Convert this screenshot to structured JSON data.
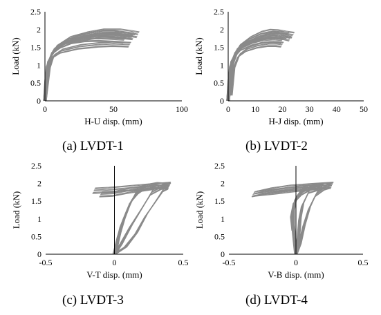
{
  "chart_data": [
    {
      "type": "line",
      "caption": "(a) LVDT-1",
      "xlabel": "H-U disp. (mm)",
      "ylabel": "Load (kN)",
      "xlim": [
        0,
        100
      ],
      "ylim": [
        0,
        2.5
      ],
      "xticks": [
        "0",
        "50",
        "100"
      ],
      "yticks": [
        "0",
        "0.5",
        "1",
        "1.5",
        "2",
        "2.5"
      ],
      "grid": false,
      "series": [
        {
          "values": [
            [
              0,
              0
            ],
            [
              1,
              0.35
            ],
            [
              2,
              0.85
            ],
            [
              4,
              1.2
            ],
            [
              7,
              1.4
            ],
            [
              12,
              1.55
            ],
            [
              20,
              1.68
            ],
            [
              30,
              1.78
            ],
            [
              40,
              1.84
            ],
            [
              50,
              1.85
            ],
            [
              60,
              1.82
            ],
            [
              65,
              1.8
            ]
          ]
        },
        {
          "values": [
            [
              0,
              0
            ],
            [
              2,
              0.9
            ],
            [
              5,
              1.3
            ],
            [
              10,
              1.52
            ],
            [
              20,
              1.68
            ],
            [
              30,
              1.74
            ],
            [
              40,
              1.75
            ],
            [
              50,
              1.73
            ],
            [
              58,
              1.71
            ]
          ]
        },
        {
          "values": [
            [
              0,
              0
            ],
            [
              3,
              0.9
            ],
            [
              6,
              1.25
            ],
            [
              12,
              1.4
            ],
            [
              25,
              1.52
            ],
            [
              40,
              1.58
            ],
            [
              50,
              1.6
            ],
            [
              57,
              1.59
            ],
            [
              62,
              1.58
            ]
          ]
        },
        {
          "values": [
            [
              0,
              0
            ],
            [
              1,
              0.6
            ],
            [
              3,
              1.15
            ],
            [
              8,
              1.5
            ],
            [
              18,
              1.74
            ],
            [
              30,
              1.86
            ],
            [
              42,
              1.94
            ],
            [
              54,
              1.94
            ],
            [
              62,
              1.9
            ],
            [
              68,
              1.86
            ]
          ]
        },
        {
          "values": [
            [
              0,
              0
            ],
            [
              2,
              1.0
            ],
            [
              6,
              1.42
            ],
            [
              15,
              1.66
            ],
            [
              28,
              1.82
            ],
            [
              40,
              1.9
            ],
            [
              50,
              1.9
            ],
            [
              58,
              1.86
            ],
            [
              64,
              1.83
            ]
          ]
        }
      ]
    },
    {
      "type": "line",
      "caption": "(b) LVDT-2",
      "xlabel": "H-J disp. (mm)",
      "ylabel": "Load (kN)",
      "xlim": [
        0,
        50
      ],
      "ylim": [
        0,
        2.5
      ],
      "xticks": [
        "0",
        "10",
        "20",
        "30",
        "40",
        "50"
      ],
      "yticks": [
        "0",
        "0.5",
        "1",
        "1.5",
        "2",
        "2.5"
      ],
      "grid": false,
      "series": [
        {
          "values": [
            [
              0,
              0
            ],
            [
              0.5,
              0.4
            ],
            [
              1,
              0.8
            ],
            [
              2,
              1.2
            ],
            [
              3.5,
              1.4
            ],
            [
              6,
              1.58
            ],
            [
              10,
              1.72
            ],
            [
              14,
              1.82
            ],
            [
              18,
              1.84
            ],
            [
              21,
              1.8
            ],
            [
              23,
              1.76
            ]
          ]
        },
        {
          "values": [
            [
              0,
              0
            ],
            [
              1,
              0.9
            ],
            [
              3,
              1.3
            ],
            [
              5,
              1.48
            ],
            [
              9,
              1.62
            ],
            [
              13,
              1.7
            ],
            [
              17,
              1.72
            ],
            [
              20,
              1.7
            ]
          ]
        },
        {
          "values": [
            [
              1,
              0.15
            ],
            [
              2,
              0.9
            ],
            [
              4,
              1.28
            ],
            [
              7,
              1.45
            ],
            [
              11,
              1.55
            ],
            [
              15,
              1.6
            ],
            [
              18,
              1.6
            ],
            [
              20,
              1.58
            ]
          ]
        },
        {
          "values": [
            [
              0,
              0
            ],
            [
              0.5,
              0.6
            ],
            [
              1.5,
              1.15
            ],
            [
              4,
              1.52
            ],
            [
              8,
              1.74
            ],
            [
              12,
              1.88
            ],
            [
              15,
              1.93
            ],
            [
              18,
              1.92
            ],
            [
              21,
              1.88
            ],
            [
              24,
              1.85
            ]
          ]
        },
        {
          "values": [
            [
              0,
              0
            ],
            [
              1,
              1.0
            ],
            [
              3,
              1.42
            ],
            [
              7,
              1.66
            ],
            [
              12,
              1.82
            ],
            [
              16,
              1.88
            ],
            [
              20,
              1.86
            ],
            [
              22,
              1.83
            ]
          ]
        }
      ]
    },
    {
      "type": "line",
      "caption": "(c) LVDT-3",
      "xlabel": "V-T disp. (mm)",
      "ylabel": "Load (kN)",
      "xlim": [
        -0.5,
        0.5
      ],
      "ylim": [
        0,
        2.5
      ],
      "xticks": [
        "-0.5",
        "0",
        "0.5"
      ],
      "yticks": [
        "0",
        "0.5",
        "1",
        "1.5",
        "2",
        "2.5"
      ],
      "grid": false,
      "series": [
        {
          "values": [
            [
              0,
              0
            ],
            [
              0.05,
              0.3
            ],
            [
              0.12,
              0.8
            ],
            [
              0.2,
              1.3
            ],
            [
              0.27,
              1.75
            ],
            [
              0.35,
              1.92
            ],
            [
              0.4,
              1.95
            ]
          ]
        },
        {
          "values": [
            [
              0,
              0
            ],
            [
              0.08,
              0.2
            ],
            [
              0.16,
              0.6
            ],
            [
              0.23,
              1.1
            ],
            [
              0.3,
              1.5
            ],
            [
              0.36,
              1.85
            ],
            [
              0.4,
              1.93
            ]
          ]
        },
        {
          "values": [
            [
              0,
              0
            ],
            [
              0.03,
              0.5
            ],
            [
              0.07,
              1.0
            ],
            [
              0.12,
              1.5
            ],
            [
              0.2,
              1.88
            ],
            [
              0.3,
              1.95
            ],
            [
              0.38,
              1.93
            ]
          ]
        },
        {
          "values": [
            [
              0,
              0
            ],
            [
              0.02,
              0.3
            ],
            [
              0.05,
              0.8
            ],
            [
              0.1,
              1.3
            ],
            [
              0.15,
              1.7
            ],
            [
              0.22,
              1.9
            ]
          ]
        },
        {
          "values": [
            [
              0.4,
              1.96
            ],
            [
              0.2,
              1.9
            ],
            [
              0.05,
              1.85
            ],
            [
              -0.05,
              1.82
            ],
            [
              -0.15,
              1.8
            ]
          ]
        },
        {
          "values": [
            [
              0.3,
              1.92
            ],
            [
              0.1,
              1.8
            ],
            [
              0,
              1.72
            ],
            [
              -0.1,
              1.7
            ]
          ]
        }
      ]
    },
    {
      "type": "line",
      "caption": "(d) LVDT-4",
      "xlabel": "V-B disp. (mm)",
      "ylabel": "Load (kN)",
      "xlim": [
        -0.5,
        0.5
      ],
      "ylim": [
        0,
        2.5
      ],
      "xticks": [
        "-0.5",
        "0",
        "0.5"
      ],
      "yticks": [
        "0",
        "0.5",
        "1",
        "1.5",
        "2",
        "2.5"
      ],
      "grid": false,
      "series": [
        {
          "values": [
            [
              0,
              0
            ],
            [
              -0.01,
              0.4
            ],
            [
              -0.02,
              0.8
            ],
            [
              -0.02,
              1.2
            ],
            [
              0,
              1.6
            ],
            [
              0.05,
              1.85
            ],
            [
              0.15,
              1.93
            ],
            [
              0.27,
              1.95
            ]
          ]
        },
        {
          "values": [
            [
              0,
              0
            ],
            [
              0.03,
              0.3
            ],
            [
              0.06,
              0.8
            ],
            [
              0.1,
              1.3
            ],
            [
              0.15,
              1.7
            ],
            [
              0.22,
              1.9
            ],
            [
              0.26,
              1.95
            ]
          ]
        },
        {
          "values": [
            [
              0,
              0
            ],
            [
              0.02,
              0.5
            ],
            [
              0.03,
              1.0
            ],
            [
              0.05,
              1.4
            ],
            [
              0.1,
              1.8
            ],
            [
              0.2,
              1.92
            ]
          ]
        },
        {
          "values": [
            [
              -0.02,
              0.7
            ],
            [
              -0.03,
              1.1
            ],
            [
              -0.01,
              1.5
            ],
            [
              0.05,
              1.75
            ],
            [
              0.12,
              1.9
            ]
          ]
        },
        {
          "values": [
            [
              0.27,
              1.96
            ],
            [
              0.1,
              1.92
            ],
            [
              -0.05,
              1.88
            ],
            [
              -0.2,
              1.8
            ],
            [
              -0.32,
              1.7
            ]
          ]
        },
        {
          "values": [
            [
              0.2,
              1.93
            ],
            [
              0,
              1.85
            ],
            [
              -0.15,
              1.78
            ],
            [
              -0.3,
              1.72
            ]
          ]
        }
      ]
    }
  ]
}
